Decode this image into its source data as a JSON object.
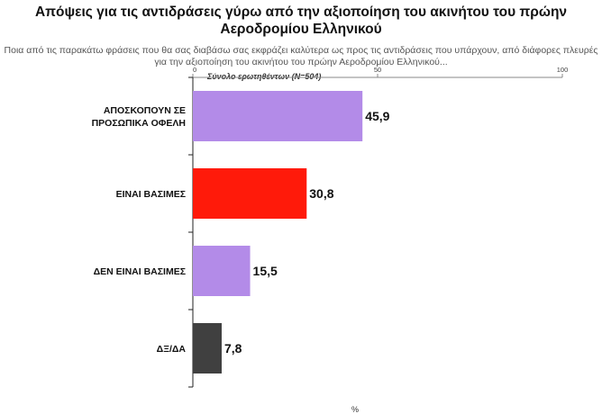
{
  "chart_data": {
    "type": "bar",
    "orientation": "horizontal",
    "title": "Απόψεις για τις αντιδράσεις γύρω από την αξιοποίηση του ακινήτου του πρώην Αεροδρομίου Ελληνικού",
    "subtitle": "Ποια από τις παρακάτω φράσεις που θα σας διαβάσω σας εκφράζει καλύτερα ως προς τις αντιδράσεις που υπάρχουν, από διάφορες πλευρές για την αξιοποίηση του ακινήτου του πρώην Αεροδρομίου Ελληνικού...",
    "base_label": "Σύνολο ερωτηθέντων (N=504)",
    "unit_label": "%",
    "categories": [
      [
        "ΑΠΟΣΚΟΠΟΥΝ ΣΕ",
        "ΠΡΟΣΩΠΙΚΑ ΟΦΕΛΗ"
      ],
      [
        "ΕΙΝΑΙ ΒΑΣΙΜΕΣ"
      ],
      [
        "ΔΕΝ ΕΙΝΑΙ ΒΑΣΙΜΕΣ"
      ],
      [
        "ΔΞ/ΔΑ"
      ]
    ],
    "values": [
      45.9,
      30.8,
      15.5,
      7.8
    ],
    "value_labels": [
      "45,9",
      "30,8",
      "15,5",
      "7,8"
    ],
    "colors": [
      "#b38be8",
      "#ff1a0a",
      "#b38be8",
      "#404040"
    ],
    "xlim": [
      0,
      100
    ],
    "ticks": [
      0,
      50,
      100
    ],
    "grid": false
  }
}
